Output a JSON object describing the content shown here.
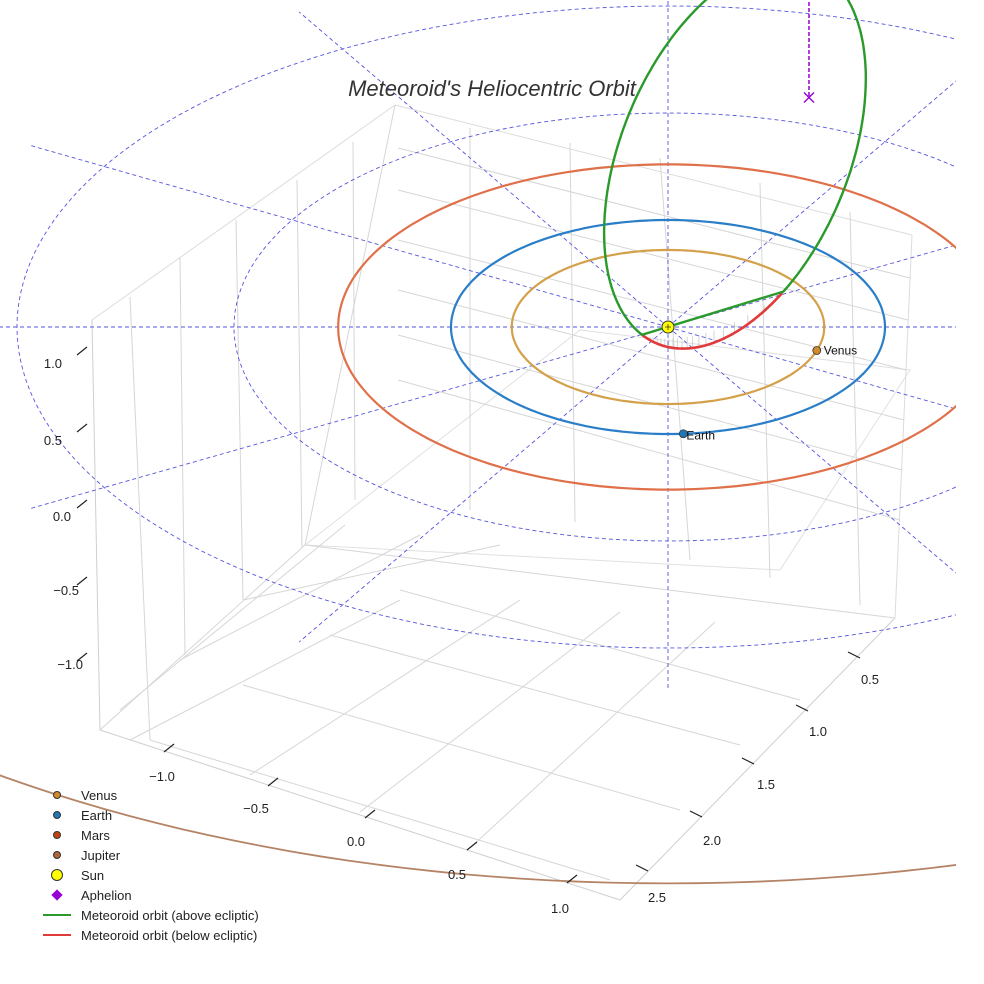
{
  "chart_data": {
    "type": "3d-line",
    "title": "Meteoroid's Heliocentric Orbit",
    "x_ticks": [
      "−1.0",
      "−0.5",
      "0.0",
      "0.5",
      "1.0"
    ],
    "y_ticks": [
      "0.5",
      "1.0",
      "1.5",
      "2.0",
      "2.5"
    ],
    "z_ticks": [
      "1.0",
      "0.5",
      "0.0",
      "−0.5",
      "−1.0"
    ],
    "zlim": [
      -1.4,
      1.2
    ],
    "planets": [
      {
        "name": "Venus",
        "radius_au": 0.72,
        "color": "#d18a2b",
        "orbit_color": "#d4a04a"
      },
      {
        "name": "Earth",
        "radius_au": 1.0,
        "color": "#1f77b4",
        "orbit_color": "#2a7ec8"
      },
      {
        "name": "Mars",
        "radius_au": 1.52,
        "color": "#c1440e",
        "orbit_color": "#e0704a"
      },
      {
        "name": "Jupiter",
        "radius_au": 5.2,
        "color": "#b0643c",
        "orbit_color": "#b58466"
      }
    ],
    "point_labels": {
      "venus": "Venus",
      "earth": "Earth"
    },
    "meteoroid": {
      "perihelion_au": 0.12,
      "aphelion_au": 2.4,
      "inclination_deg": 30,
      "above_color": "#2a9a2a",
      "below_color": "#e03a3a"
    },
    "aphelion_color": "#9400d3",
    "sun_color": "#ffff00",
    "ecliptic_grid_color": "#5555dd"
  },
  "legend": {
    "items": [
      {
        "label": "Venus",
        "kind": "dot",
        "color": "#d18a2b"
      },
      {
        "label": "Earth",
        "kind": "dot",
        "color": "#1f77b4"
      },
      {
        "label": "Mars",
        "kind": "dot",
        "color": "#c1440e"
      },
      {
        "label": "Jupiter",
        "kind": "dot",
        "color": "#b0643c"
      },
      {
        "label": "Sun",
        "kind": "sun",
        "color": "#ffff00"
      },
      {
        "label": "Aphelion",
        "kind": "diamond",
        "color": "#9400d3"
      },
      {
        "label": "Meteoroid orbit (above ecliptic)",
        "kind": "line",
        "color": "#2a9a2a"
      },
      {
        "label": "Meteoroid orbit (below ecliptic)",
        "kind": "line",
        "color": "#e03a3a"
      }
    ]
  }
}
